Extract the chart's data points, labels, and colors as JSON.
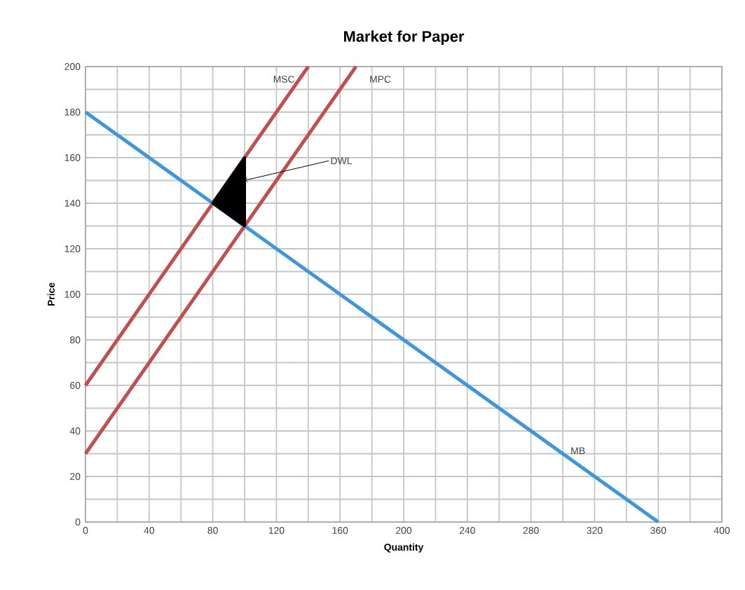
{
  "chart_data": {
    "type": "line",
    "title": "Market for Paper",
    "xlabel": "Quantity",
    "ylabel": "Price",
    "series": [
      {
        "name": "MSC",
        "color": "#c0504d",
        "x": [
          0,
          140
        ],
        "values": [
          60,
          200
        ]
      },
      {
        "name": "MPC",
        "color": "#c0504d",
        "x": [
          0,
          170
        ],
        "values": [
          30,
          200
        ]
      },
      {
        "name": "MB",
        "color": "#3d97de",
        "x": [
          0,
          360
        ],
        "values": [
          180,
          0
        ]
      },
      {
        "type": "area",
        "color": "#000000",
        "x": [
          80,
          100,
          100,
          80
        ],
        "values": [
          140,
          160,
          130,
          140
        ]
      }
    ],
    "xlim": [
      0,
      400
    ],
    "ylim": [
      0,
      200
    ],
    "xticks": [
      0,
      40,
      80,
      120,
      160,
      200,
      240,
      280,
      320,
      360,
      400
    ],
    "yticks": [
      0,
      20,
      40,
      60,
      80,
      100,
      120,
      140,
      160,
      180,
      200
    ],
    "annotations": [
      {
        "text": "DWL",
        "x": 100,
        "y": 150
      }
    ],
    "grid": true,
    "marker": "none",
    "line_style": "solid"
  }
}
